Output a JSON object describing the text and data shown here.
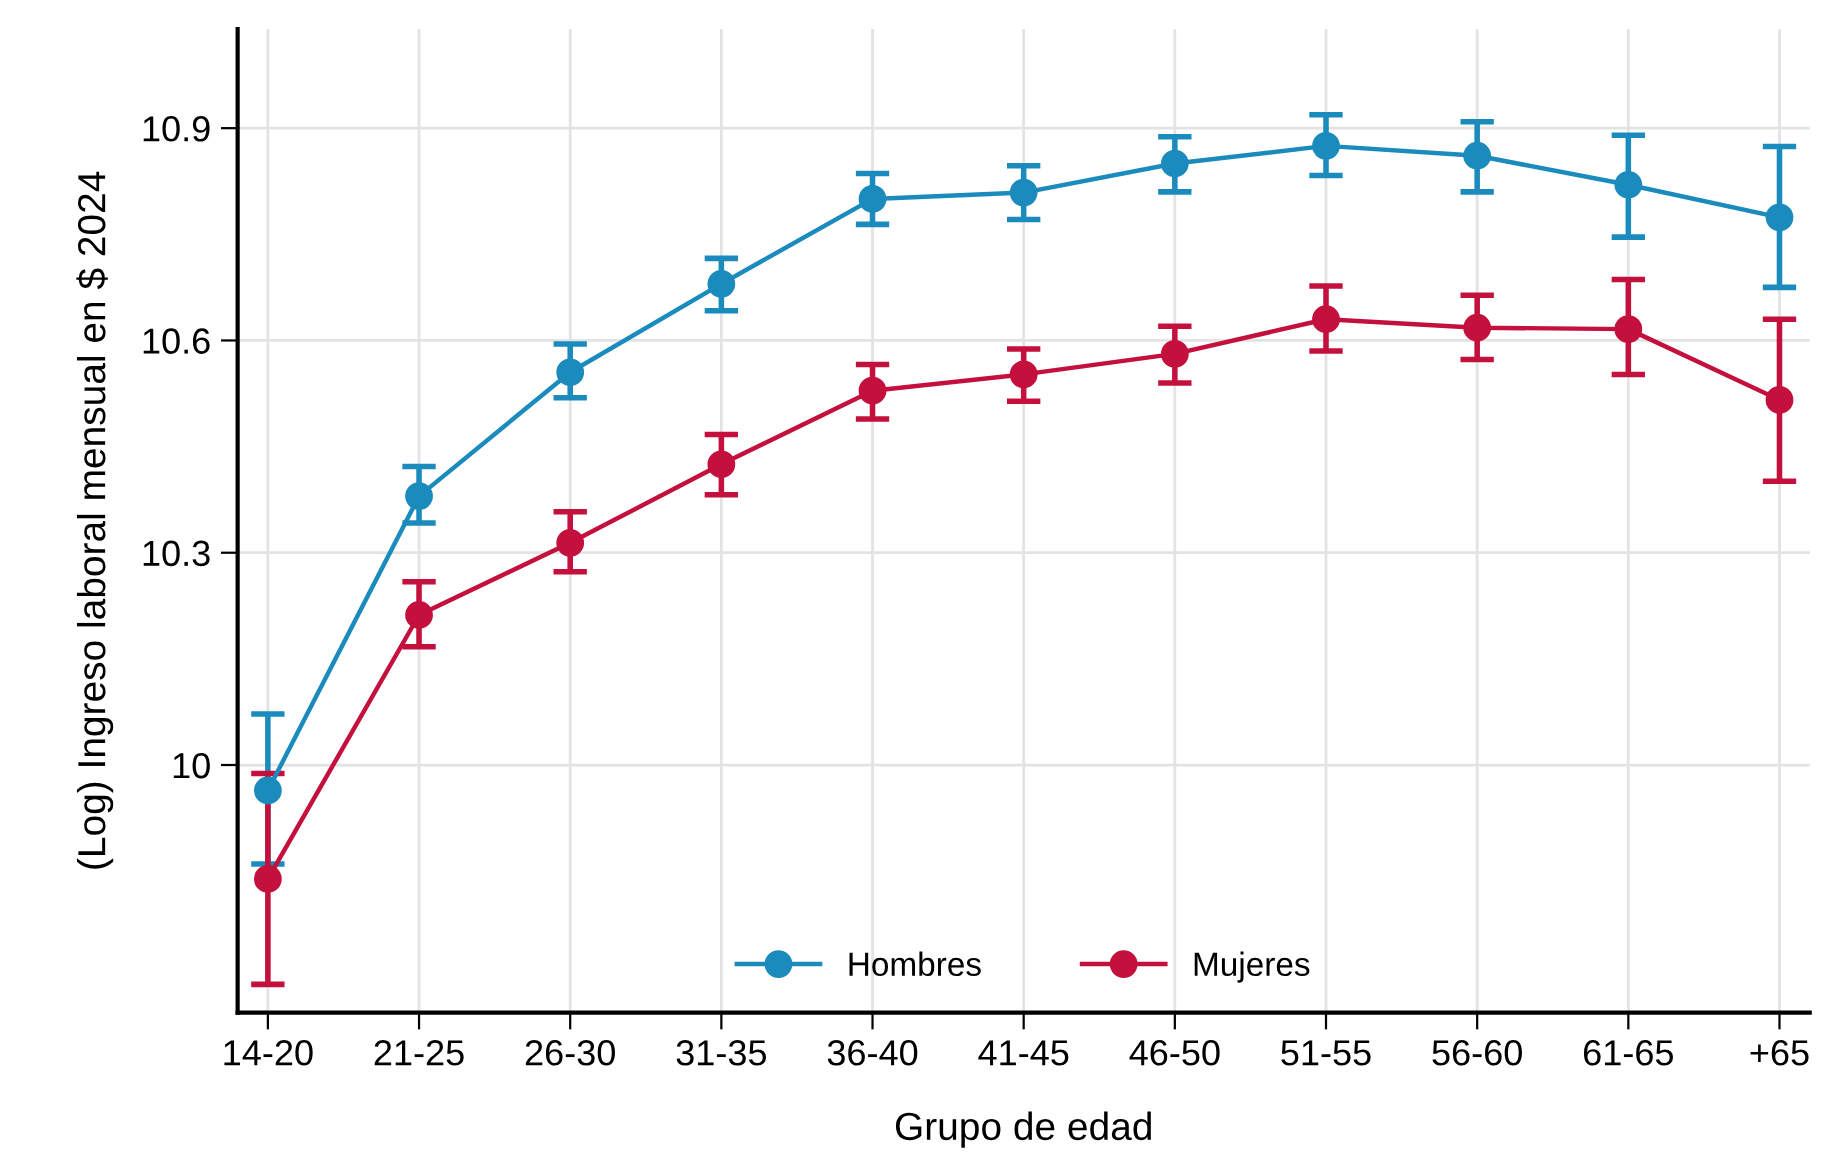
{
  "chart_data": {
    "type": "line",
    "xlabel": "Grupo de edad",
    "ylabel": "(Log) Ingreso laboral mensual en $ 2024",
    "categories": [
      "14-20",
      "21-25",
      "26-30",
      "31-35",
      "36-40",
      "41-45",
      "46-50",
      "51-55",
      "56-60",
      "61-65",
      "+65"
    ],
    "series": [
      {
        "name": "Hombres",
        "color": "#1b8bbd",
        "values": [
          9.964,
          10.38,
          10.555,
          10.68,
          10.8,
          10.809,
          10.85,
          10.875,
          10.861,
          10.82,
          10.774
        ],
        "errors": [
          [
            9.86,
            10.072
          ],
          [
            10.342,
            10.422
          ],
          [
            10.519,
            10.595
          ],
          [
            10.642,
            10.716
          ],
          [
            10.764,
            10.836
          ],
          [
            10.771,
            10.847
          ],
          [
            10.81,
            10.888
          ],
          [
            10.833,
            10.919
          ],
          [
            10.81,
            10.909
          ],
          [
            10.746,
            10.89
          ],
          [
            10.675,
            10.874
          ]
        ]
      },
      {
        "name": "Mujeres",
        "color": "#c4103c",
        "values": [
          9.839,
          10.212,
          10.314,
          10.425,
          10.529,
          10.552,
          10.581,
          10.63,
          10.618,
          10.616,
          10.516
        ],
        "errors": [
          [
            9.69,
            9.988
          ],
          [
            10.167,
            10.259
          ],
          [
            10.273,
            10.358
          ],
          [
            10.382,
            10.467
          ],
          [
            10.489,
            10.566
          ],
          [
            10.514,
            10.588
          ],
          [
            10.54,
            10.62
          ],
          [
            10.585,
            10.677
          ],
          [
            10.573,
            10.664
          ],
          [
            10.552,
            10.686
          ],
          [
            10.401,
            10.63
          ]
        ]
      }
    ],
    "ylim": [
      9.65,
      11.04
    ],
    "yticks": [
      10,
      10.3,
      10.6,
      10.9
    ],
    "grid": true,
    "legend": "bottom",
    "marker": "circle",
    "line_style": "solid"
  }
}
